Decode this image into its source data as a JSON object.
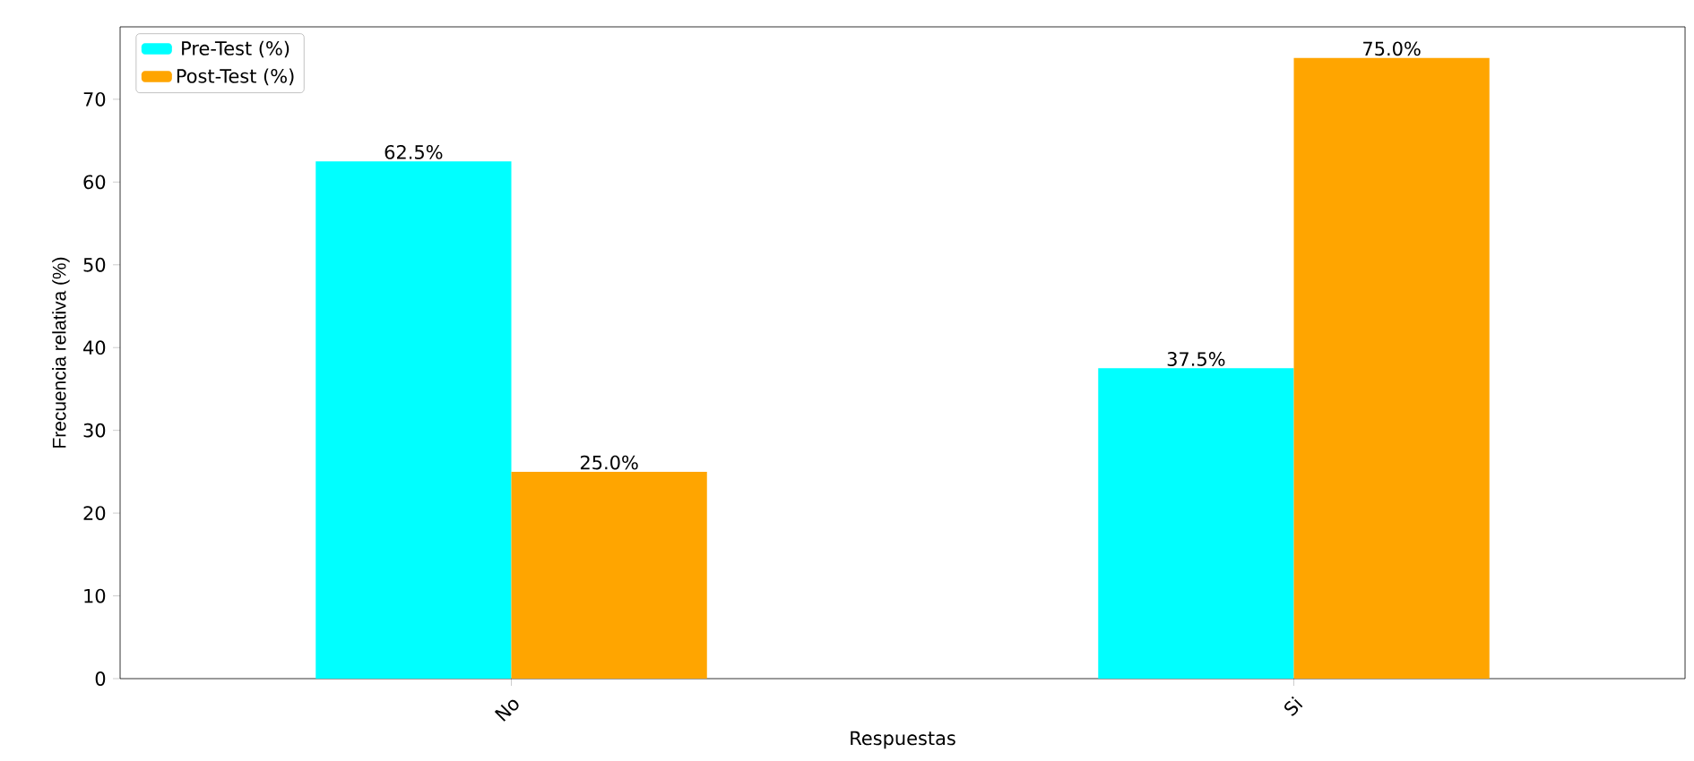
{
  "chart_data": {
    "type": "bar",
    "xlabel": "Respuestas",
    "ylabel": "Frecuencia relativa (%)",
    "categories": [
      "No",
      "Si"
    ],
    "series": [
      {
        "name": "Pre-Test (%)",
        "color": "#00ffff",
        "values": [
          62.5,
          37.5
        ],
        "value_labels": [
          "62.5%",
          "37.5%"
        ]
      },
      {
        "name": "Post-Test (%)",
        "color": "#ffa500",
        "values": [
          25.0,
          75.0
        ],
        "value_labels": [
          "25.0%",
          "75.0%"
        ]
      }
    ],
    "ylim": [
      0,
      78.75
    ],
    "yticks": [
      0,
      10,
      20,
      30,
      40,
      50,
      60,
      70
    ],
    "legend": "top left"
  }
}
